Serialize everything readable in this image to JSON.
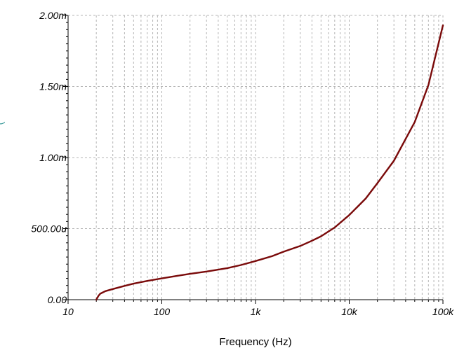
{
  "chart_data": {
    "type": "line",
    "xlabel": "Frequency (Hz)",
    "ylabel": "(",
    "x_scale": "log",
    "xlim": [
      10,
      100000
    ],
    "ylim": [
      0,
      0.002
    ],
    "grid": true,
    "x_ticks": [
      {
        "value": 10,
        "label": "10"
      },
      {
        "value": 100,
        "label": "100"
      },
      {
        "value": 1000,
        "label": "1k"
      },
      {
        "value": 10000,
        "label": "10k"
      },
      {
        "value": 100000,
        "label": "100k"
      }
    ],
    "y_ticks": [
      {
        "value": 0,
        "label": "0.00"
      },
      {
        "value": 0.0005,
        "label": "500.00u"
      },
      {
        "value": 0.001,
        "label": "1.00m"
      },
      {
        "value": 0.0015,
        "label": "1.50m"
      },
      {
        "value": 0.002,
        "label": "2.00m"
      }
    ],
    "series": [
      {
        "color": "#7a0a0a",
        "x": [
          20,
          21,
          22,
          25,
          30,
          40,
          50,
          70,
          100,
          150,
          200,
          300,
          500,
          700,
          1000,
          1500,
          2000,
          3000,
          4000,
          5000,
          7000,
          10000,
          15000,
          20000,
          30000,
          50000,
          70000,
          100000
        ],
        "y": [
          0.0,
          2.5e-05,
          4.2e-05,
          6e-05,
          7.5e-05,
          9.7e-05,
          0.000113,
          0.000132,
          0.00015,
          0.000169,
          0.000182,
          0.000198,
          0.000222,
          0.000244,
          0.000272,
          0.000306,
          0.000338,
          0.000378,
          0.000415,
          0.000446,
          0.000508,
          0.000595,
          0.000712,
          0.00082,
          0.000978,
          0.00125,
          0.00151,
          0.00193
        ]
      }
    ]
  }
}
